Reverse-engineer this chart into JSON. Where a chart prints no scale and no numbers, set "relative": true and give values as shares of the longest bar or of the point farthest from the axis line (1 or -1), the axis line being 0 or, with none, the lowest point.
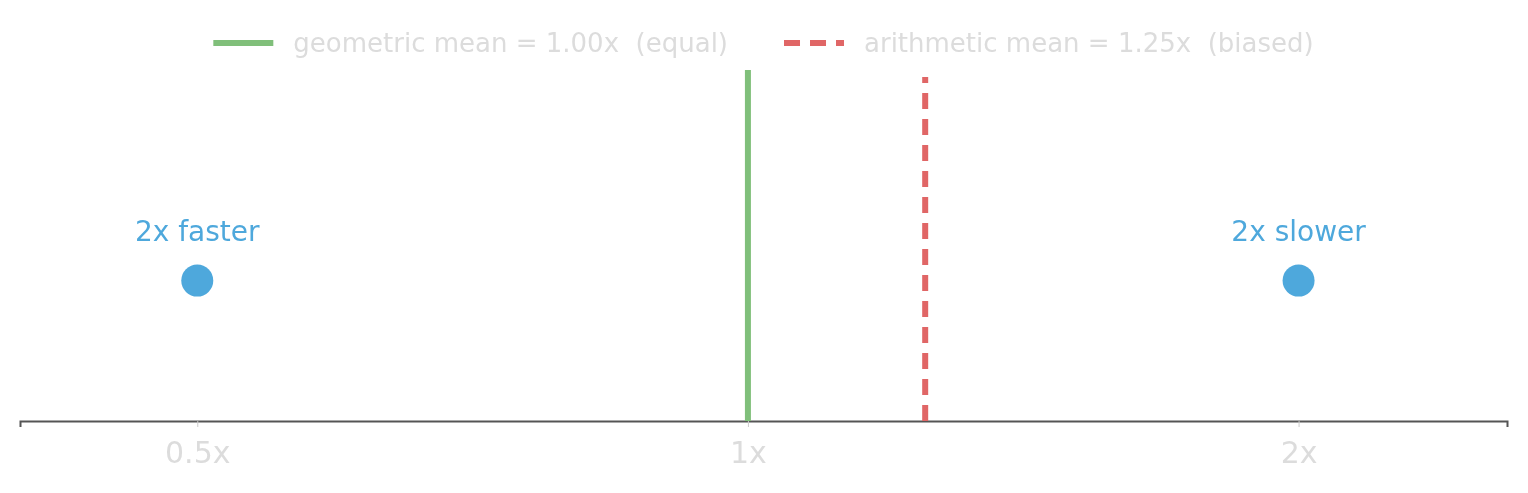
{
  "chart_data": {
    "type": "scatter",
    "log": "x",
    "xlim": [
      0.4,
      2.6
    ],
    "relative": true,
    "xticks": [
      {
        "value": 0.5,
        "label": "0.5x"
      },
      {
        "value": 1,
        "label": "1x"
      },
      {
        "value": 2,
        "label": "2x"
      }
    ],
    "legend": "top",
    "tick_labels": "x",
    "series": [
      {
        "color": "#4ea8dc",
        "marker": "circle",
        "x": [
          0.5,
          2
        ],
        "values": [
          0.4,
          0.4
        ]
      },
      {
        "type": "line",
        "name": "geometric mean = 1.00x  (equal)",
        "color": "#80bf7a",
        "line_style": "solid",
        "x": [
          1,
          1
        ],
        "values": [
          0,
          1
        ]
      },
      {
        "type": "line",
        "name": "arithmetic mean = 1.25x  (biased)",
        "color": "#e06666",
        "line_style": "dashed",
        "x": [
          1.25,
          1.25
        ],
        "values": [
          0,
          0.98
        ]
      }
    ],
    "annotations": [
      {
        "text": "2x faster",
        "x": 0.5,
        "y": 0.4
      },
      {
        "text": "2x slower",
        "x": 2,
        "y": 0.4
      }
    ]
  }
}
